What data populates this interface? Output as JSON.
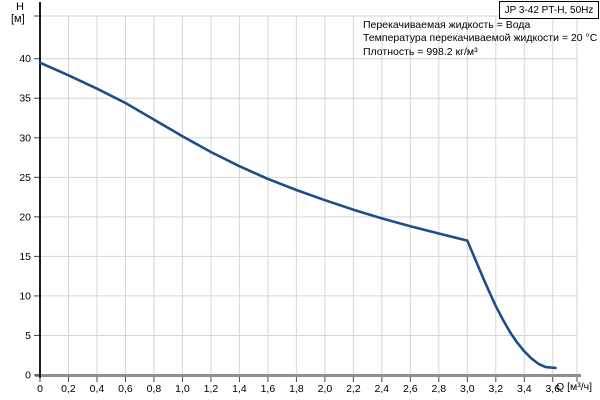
{
  "chart_data": {
    "type": "line",
    "title": "JP 3-42 PT-H, 50Hz",
    "xlabel": "Q [м³/ч]",
    "ylabel": "H",
    "ylabel_unit": "[м]",
    "xlim": [
      0,
      3.77
    ],
    "ylim": [
      0,
      45.4
    ],
    "grid": true,
    "legend": "none",
    "x_tick_values": [
      0,
      0.2,
      0.4,
      0.6,
      0.8,
      1.0,
      1.2,
      1.4,
      1.6,
      1.8,
      2.0,
      2.2,
      2.4,
      2.6,
      2.8,
      3.0,
      3.2,
      3.4,
      3.6
    ],
    "x_tick_labels": [
      "0",
      "0,2",
      "0,4",
      "0,6",
      "0,8",
      "1,0",
      "1,2",
      "1,4",
      "1,6",
      "1,8",
      "2,0",
      "2,2",
      "2,4",
      "2,6",
      "2,8",
      "3,0",
      "3,2",
      "3,4",
      "3,6"
    ],
    "y_tick_values": [
      0,
      5,
      10,
      15,
      20,
      25,
      30,
      35,
      40
    ],
    "y_tick_labels": [
      "0",
      "5",
      "10",
      "15",
      "20",
      "25",
      "30",
      "35",
      "40"
    ],
    "colors": {
      "curve": "#1d4e8a",
      "grid": "#d6d6d6",
      "x_axis": "#8f8f8f",
      "y_axis": "#1a1a1a",
      "tick": "#444444",
      "text": "#000000"
    },
    "series": [
      {
        "name": "JP 3-42 PT-H head curve",
        "points": [
          [
            0,
            39.5
          ],
          [
            0.2,
            37.9
          ],
          [
            0.4,
            36.2
          ],
          [
            0.6,
            34.4
          ],
          [
            0.8,
            32.3
          ],
          [
            1.0,
            30.2
          ],
          [
            1.2,
            28.2
          ],
          [
            1.4,
            26.4
          ],
          [
            1.6,
            24.8
          ],
          [
            1.8,
            23.4
          ],
          [
            2.0,
            22.1
          ],
          [
            2.2,
            20.9
          ],
          [
            2.4,
            19.8
          ],
          [
            2.6,
            18.8
          ],
          [
            2.8,
            17.9
          ],
          [
            3.0,
            17.0
          ],
          [
            3.04,
            15.3
          ],
          [
            3.08,
            13.6
          ],
          [
            3.12,
            11.9
          ],
          [
            3.16,
            10.3
          ],
          [
            3.2,
            8.7
          ],
          [
            3.25,
            7.0
          ],
          [
            3.3,
            5.4
          ],
          [
            3.35,
            4.1
          ],
          [
            3.4,
            3.0
          ],
          [
            3.45,
            2.1
          ],
          [
            3.5,
            1.4
          ],
          [
            3.55,
            1.0
          ],
          [
            3.62,
            0.9
          ]
        ]
      }
    ],
    "annotations": [
      "Перекачиваемая жидкость = Вода",
      "Температура перекачиваемой жидкости = 20 °C",
      "Плотность = 998.2 кг/м³"
    ]
  }
}
